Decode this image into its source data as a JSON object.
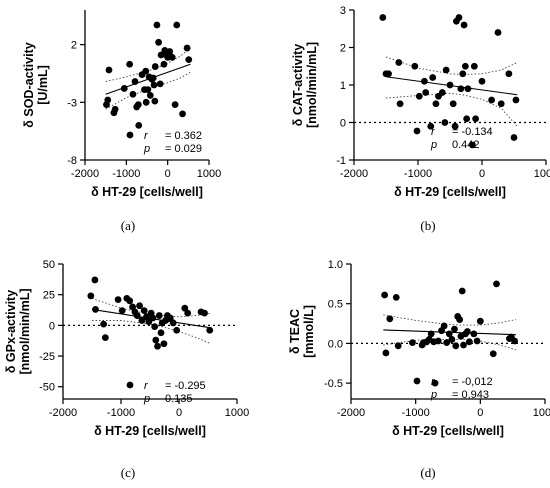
{
  "chart_data": [
    {
      "type": "scatter",
      "panel_label": "(a)",
      "xlabel": "δ HT-29 [cells/well]",
      "ylabel_line1": "δ SOD-activity",
      "ylabel_line2": "[U/mL]",
      "xlim": [
        -2000,
        1000
      ],
      "ylim": [
        -8,
        5
      ],
      "xticks": [
        -2000,
        -1000,
        0,
        1000
      ],
      "yticks": [
        -8,
        -3,
        2
      ],
      "zero_line": false,
      "stats": {
        "r_label": "r",
        "r_value": "= 0.362",
        "p_label": "p",
        "p_value": "= 0.029"
      },
      "fit": {
        "x": [
          -1500,
          550
        ],
        "y": [
          -2.3,
          0.3
        ]
      },
      "ci_upper": [
        [
          -1500,
          -1.2
        ],
        [
          -1000,
          -0.8
        ],
        [
          -500,
          -0.3
        ],
        [
          -300,
          -0.1
        ],
        [
          0,
          0.4
        ],
        [
          300,
          1.0
        ],
        [
          550,
          1.7
        ]
      ],
      "ci_lower": [
        [
          -1500,
          -3.6
        ],
        [
          -1000,
          -2.6
        ],
        [
          -500,
          -1.9
        ],
        [
          -300,
          -1.6
        ],
        [
          0,
          -1.3
        ],
        [
          300,
          -0.9
        ],
        [
          550,
          -0.4
        ]
      ],
      "points": [
        {
          "x": -1480,
          "y": -3.2
        },
        {
          "x": -1450,
          "y": -2.8
        },
        {
          "x": -1420,
          "y": -0.2
        },
        {
          "x": -1300,
          "y": -3.9
        },
        {
          "x": -1270,
          "y": -3.6
        },
        {
          "x": -1050,
          "y": -1.8
        },
        {
          "x": -920,
          "y": 0.3
        },
        {
          "x": -840,
          "y": -2.3
        },
        {
          "x": -790,
          "y": -1.2
        },
        {
          "x": -750,
          "y": -3.4
        },
        {
          "x": -710,
          "y": -3.2
        },
        {
          "x": -700,
          "y": -5.0
        },
        {
          "x": -620,
          "y": -0.6
        },
        {
          "x": -560,
          "y": -1.9
        },
        {
          "x": -530,
          "y": -0.3
        },
        {
          "x": -520,
          "y": -3.0
        },
        {
          "x": -480,
          "y": -1.9
        },
        {
          "x": -450,
          "y": -0.8
        },
        {
          "x": -420,
          "y": -2.4
        },
        {
          "x": -380,
          "y": -1.0
        },
        {
          "x": -350,
          "y": -0.9
        },
        {
          "x": -330,
          "y": -1.5
        },
        {
          "x": -310,
          "y": -2.9
        },
        {
          "x": -300,
          "y": 0.1
        },
        {
          "x": -260,
          "y": 3.7
        },
        {
          "x": -220,
          "y": 2.2
        },
        {
          "x": -180,
          "y": -1.4
        },
        {
          "x": -160,
          "y": 1.1
        },
        {
          "x": -90,
          "y": 0.3
        },
        {
          "x": -70,
          "y": 1.5
        },
        {
          "x": -30,
          "y": 1.1
        },
        {
          "x": 0,
          "y": 0.9
        },
        {
          "x": 50,
          "y": 1.4
        },
        {
          "x": 110,
          "y": 0.9
        },
        {
          "x": 180,
          "y": -3.2
        },
        {
          "x": 220,
          "y": 3.7
        },
        {
          "x": 360,
          "y": -4.0
        },
        {
          "x": 470,
          "y": 1.7
        },
        {
          "x": 510,
          "y": 0.7
        }
      ]
    },
    {
      "type": "scatter",
      "panel_label": "(b)",
      "xlabel": "δ HT-29 [cells/well]",
      "ylabel_line1": "δ CAT-activity",
      "ylabel_line2": "[nmol/min/mL]",
      "xlim": [
        -2000,
        1000
      ],
      "ylim": [
        -1,
        3
      ],
      "xticks": [
        -2000,
        -1000,
        0,
        1000
      ],
      "yticks": [
        -1,
        0,
        1,
        2,
        3
      ],
      "zero_line": true,
      "stats": {
        "r_label": "r",
        "r_value": "= -0.134",
        "p_label": "p",
        "p_value": "0.442"
      },
      "fit": {
        "x": [
          -1500,
          550
        ],
        "y": [
          1.22,
          0.74
        ]
      },
      "ci_upper": [
        [
          -1500,
          1.75
        ],
        [
          -1000,
          1.45
        ],
        [
          -500,
          1.3
        ],
        [
          -300,
          1.28
        ],
        [
          0,
          1.3
        ],
        [
          300,
          1.4
        ],
        [
          550,
          1.6
        ]
      ],
      "ci_lower": [
        [
          -1500,
          0.65
        ],
        [
          -1000,
          0.72
        ],
        [
          -500,
          0.78
        ],
        [
          -300,
          0.74
        ],
        [
          0,
          0.62
        ],
        [
          300,
          0.38
        ],
        [
          550,
          -0.1
        ]
      ],
      "points": [
        {
          "x": -1550,
          "y": 2.8
        },
        {
          "x": -1500,
          "y": 1.3
        },
        {
          "x": -1460,
          "y": 1.3
        },
        {
          "x": -1300,
          "y": 1.6
        },
        {
          "x": -1280,
          "y": 0.5
        },
        {
          "x": -1050,
          "y": 1.5
        },
        {
          "x": -980,
          "y": 0.7
        },
        {
          "x": -900,
          "y": 1.1
        },
        {
          "x": -880,
          "y": 0.8
        },
        {
          "x": -800,
          "y": -0.1
        },
        {
          "x": -770,
          "y": 1.2
        },
        {
          "x": -720,
          "y": 0.5
        },
        {
          "x": -680,
          "y": 0.7
        },
        {
          "x": -620,
          "y": 0.8
        },
        {
          "x": -580,
          "y": 0.0
        },
        {
          "x": -560,
          "y": 1.4
        },
        {
          "x": -500,
          "y": 1.0
        },
        {
          "x": -450,
          "y": 0.5
        },
        {
          "x": -420,
          "y": -0.1
        },
        {
          "x": -400,
          "y": 2.7
        },
        {
          "x": -360,
          "y": 2.8
        },
        {
          "x": -330,
          "y": 0.9
        },
        {
          "x": -300,
          "y": 1.3
        },
        {
          "x": -280,
          "y": 2.6
        },
        {
          "x": -260,
          "y": 1.5
        },
        {
          "x": -240,
          "y": 0.1
        },
        {
          "x": -220,
          "y": 0.9
        },
        {
          "x": -150,
          "y": -0.6
        },
        {
          "x": -120,
          "y": 1.5
        },
        {
          "x": -100,
          "y": 0.1
        },
        {
          "x": 0,
          "y": 1.1
        },
        {
          "x": 150,
          "y": 0.6
        },
        {
          "x": 250,
          "y": 2.4
        },
        {
          "x": 300,
          "y": 0.5
        },
        {
          "x": 420,
          "y": 1.3
        },
        {
          "x": 500,
          "y": -0.4
        },
        {
          "x": 530,
          "y": 0.6
        }
      ]
    },
    {
      "type": "scatter",
      "panel_label": "(c)",
      "xlabel": "δ HT-29 [cells/well]",
      "ylabel_line1": "δ GPx-activity",
      "ylabel_line2": "[nmol/min/mL]",
      "xlim": [
        -2000,
        1000
      ],
      "ylim": [
        -60,
        50
      ],
      "xticks": [
        -2000,
        -1000,
        0,
        1000
      ],
      "yticks": [
        -50,
        -25,
        0,
        25,
        50
      ],
      "zero_line": true,
      "stats": {
        "r_label": "r",
        "r_value": "= -0.295",
        "p_label": "p",
        "p_value": "0.135"
      },
      "fit": {
        "x": [
          -1500,
          550
        ],
        "y": [
          13,
          -2
        ]
      },
      "ci_upper": [
        [
          -1500,
          22
        ],
        [
          -1000,
          14
        ],
        [
          -500,
          9
        ],
        [
          -300,
          8
        ],
        [
          0,
          7
        ],
        [
          300,
          8
        ],
        [
          550,
          10
        ]
      ],
      "ci_lower": [
        [
          -1500,
          4
        ],
        [
          -1000,
          4
        ],
        [
          -500,
          1
        ],
        [
          -300,
          -1
        ],
        [
          0,
          -5
        ],
        [
          300,
          -10
        ],
        [
          550,
          -15
        ]
      ],
      "points": [
        {
          "x": -1520,
          "y": 24
        },
        {
          "x": -1450,
          "y": 37
        },
        {
          "x": -1440,
          "y": 13
        },
        {
          "x": -1300,
          "y": 1
        },
        {
          "x": -1270,
          "y": -10
        },
        {
          "x": -1050,
          "y": 21
        },
        {
          "x": -980,
          "y": 12
        },
        {
          "x": -900,
          "y": 22
        },
        {
          "x": -850,
          "y": 20
        },
        {
          "x": -800,
          "y": 15
        },
        {
          "x": -760,
          "y": 11
        },
        {
          "x": -720,
          "y": 8
        },
        {
          "x": -680,
          "y": 16
        },
        {
          "x": -640,
          "y": 4
        },
        {
          "x": -600,
          "y": 12
        },
        {
          "x": -560,
          "y": 7
        },
        {
          "x": -520,
          "y": 3
        },
        {
          "x": -480,
          "y": 10
        },
        {
          "x": -450,
          "y": 6
        },
        {
          "x": -420,
          "y": -1
        },
        {
          "x": -400,
          "y": -12
        },
        {
          "x": -370,
          "y": -17
        },
        {
          "x": -340,
          "y": 8
        },
        {
          "x": -310,
          "y": -6
        },
        {
          "x": -290,
          "y": 2
        },
        {
          "x": -260,
          "y": -15
        },
        {
          "x": -230,
          "y": 4
        },
        {
          "x": -200,
          "y": 8
        },
        {
          "x": -150,
          "y": 6
        },
        {
          "x": -100,
          "y": 2
        },
        {
          "x": -40,
          "y": -4
        },
        {
          "x": 100,
          "y": 14
        },
        {
          "x": 150,
          "y": 10
        },
        {
          "x": 380,
          "y": 11
        },
        {
          "x": 440,
          "y": 10
        },
        {
          "x": 530,
          "y": -4
        }
      ]
    },
    {
      "type": "scatter",
      "panel_label": "(d)",
      "xlabel": "δ HT-29 [cells/well]",
      "ylabel_line1": "δ TEAC",
      "ylabel_line2": "[mmol/L]",
      "xlim": [
        -2000,
        1000
      ],
      "ylim": [
        -0.7,
        1.0
      ],
      "xticks": [
        -2000,
        -1000,
        0,
        1000
      ],
      "yticks": [
        -0.5,
        0.0,
        0.5,
        1.0
      ],
      "ytick_labels": [
        "-0.5",
        "0.0",
        "0.5",
        "1.0"
      ],
      "zero_line": true,
      "stats": {
        "r_label": "r",
        "r_value": "= -0,012",
        "p_label": "p",
        "p_value": "= 0,943"
      },
      "fit": {
        "x": [
          -1500,
          550
        ],
        "y": [
          0.17,
          0.11
        ]
      },
      "ci_upper": [
        [
          -1500,
          0.36
        ],
        [
          -1000,
          0.29
        ],
        [
          -500,
          0.24
        ],
        [
          -300,
          0.23
        ],
        [
          0,
          0.23
        ],
        [
          300,
          0.26
        ],
        [
          550,
          0.3
        ]
      ],
      "ci_lower": [
        [
          -1500,
          -0.02
        ],
        [
          -1000,
          0.04
        ],
        [
          -500,
          0.05
        ],
        [
          -300,
          0.05
        ],
        [
          0,
          0.03
        ],
        [
          300,
          -0.02
        ],
        [
          550,
          -0.08
        ]
      ],
      "points": [
        {
          "x": -1480,
          "y": 0.61
        },
        {
          "x": -1460,
          "y": -0.12
        },
        {
          "x": -1400,
          "y": 0.31
        },
        {
          "x": -1300,
          "y": 0.58
        },
        {
          "x": -1270,
          "y": -0.03
        },
        {
          "x": -1050,
          "y": 0.01
        },
        {
          "x": -900,
          "y": -0.02
        },
        {
          "x": -880,
          "y": 0.01
        },
        {
          "x": -830,
          "y": 0.02
        },
        {
          "x": -790,
          "y": 0.05
        },
        {
          "x": -760,
          "y": 0.12
        },
        {
          "x": -720,
          "y": 0.02
        },
        {
          "x": -700,
          "y": -0.5
        },
        {
          "x": -650,
          "y": 0.03
        },
        {
          "x": -600,
          "y": 0.16
        },
        {
          "x": -560,
          "y": 0.22
        },
        {
          "x": -520,
          "y": 0.01
        },
        {
          "x": -480,
          "y": 0.12
        },
        {
          "x": -440,
          "y": 0.05
        },
        {
          "x": -400,
          "y": 0.18
        },
        {
          "x": -380,
          "y": -0.03
        },
        {
          "x": -350,
          "y": 0.34
        },
        {
          "x": -320,
          "y": 0.3
        },
        {
          "x": -300,
          "y": 0.09
        },
        {
          "x": -280,
          "y": 0.66
        },
        {
          "x": -260,
          "y": -0.02
        },
        {
          "x": -230,
          "y": 0.12
        },
        {
          "x": -200,
          "y": 0.15
        },
        {
          "x": -170,
          "y": 0.02
        },
        {
          "x": -100,
          "y": 0.12
        },
        {
          "x": -50,
          "y": 0.03
        },
        {
          "x": 0,
          "y": 0.28
        },
        {
          "x": 200,
          "y": -0.13
        },
        {
          "x": 250,
          "y": 0.75
        },
        {
          "x": 450,
          "y": 0.06
        },
        {
          "x": 480,
          "y": 0.08
        },
        {
          "x": 530,
          "y": 0.03
        }
      ]
    }
  ]
}
